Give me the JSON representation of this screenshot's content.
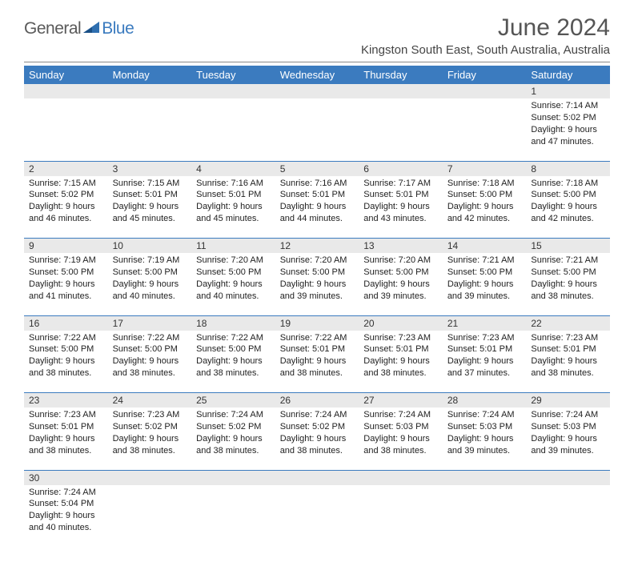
{
  "logo": {
    "text_general": "General",
    "text_blue": "Blue",
    "triangle_color": "#2f6fb0"
  },
  "title": "June 2024",
  "subtitle": "Kingston South East, South Australia, Australia",
  "header_bg": "#3b7bbf",
  "header_fg": "#ffffff",
  "daynum_bg": "#e9e9e9",
  "row_border_color": "#3b7bbf",
  "day_headers": [
    "Sunday",
    "Monday",
    "Tuesday",
    "Wednesday",
    "Thursday",
    "Friday",
    "Saturday"
  ],
  "weeks": [
    [
      null,
      null,
      null,
      null,
      null,
      null,
      {
        "n": "1",
        "sunrise": "7:14 AM",
        "sunset": "5:02 PM",
        "daylight": "9 hours and 47 minutes."
      }
    ],
    [
      {
        "n": "2",
        "sunrise": "7:15 AM",
        "sunset": "5:02 PM",
        "daylight": "9 hours and 46 minutes."
      },
      {
        "n": "3",
        "sunrise": "7:15 AM",
        "sunset": "5:01 PM",
        "daylight": "9 hours and 45 minutes."
      },
      {
        "n": "4",
        "sunrise": "7:16 AM",
        "sunset": "5:01 PM",
        "daylight": "9 hours and 45 minutes."
      },
      {
        "n": "5",
        "sunrise": "7:16 AM",
        "sunset": "5:01 PM",
        "daylight": "9 hours and 44 minutes."
      },
      {
        "n": "6",
        "sunrise": "7:17 AM",
        "sunset": "5:01 PM",
        "daylight": "9 hours and 43 minutes."
      },
      {
        "n": "7",
        "sunrise": "7:18 AM",
        "sunset": "5:00 PM",
        "daylight": "9 hours and 42 minutes."
      },
      {
        "n": "8",
        "sunrise": "7:18 AM",
        "sunset": "5:00 PM",
        "daylight": "9 hours and 42 minutes."
      }
    ],
    [
      {
        "n": "9",
        "sunrise": "7:19 AM",
        "sunset": "5:00 PM",
        "daylight": "9 hours and 41 minutes."
      },
      {
        "n": "10",
        "sunrise": "7:19 AM",
        "sunset": "5:00 PM",
        "daylight": "9 hours and 40 minutes."
      },
      {
        "n": "11",
        "sunrise": "7:20 AM",
        "sunset": "5:00 PM",
        "daylight": "9 hours and 40 minutes."
      },
      {
        "n": "12",
        "sunrise": "7:20 AM",
        "sunset": "5:00 PM",
        "daylight": "9 hours and 39 minutes."
      },
      {
        "n": "13",
        "sunrise": "7:20 AM",
        "sunset": "5:00 PM",
        "daylight": "9 hours and 39 minutes."
      },
      {
        "n": "14",
        "sunrise": "7:21 AM",
        "sunset": "5:00 PM",
        "daylight": "9 hours and 39 minutes."
      },
      {
        "n": "15",
        "sunrise": "7:21 AM",
        "sunset": "5:00 PM",
        "daylight": "9 hours and 38 minutes."
      }
    ],
    [
      {
        "n": "16",
        "sunrise": "7:22 AM",
        "sunset": "5:00 PM",
        "daylight": "9 hours and 38 minutes."
      },
      {
        "n": "17",
        "sunrise": "7:22 AM",
        "sunset": "5:00 PM",
        "daylight": "9 hours and 38 minutes."
      },
      {
        "n": "18",
        "sunrise": "7:22 AM",
        "sunset": "5:00 PM",
        "daylight": "9 hours and 38 minutes."
      },
      {
        "n": "19",
        "sunrise": "7:22 AM",
        "sunset": "5:01 PM",
        "daylight": "9 hours and 38 minutes."
      },
      {
        "n": "20",
        "sunrise": "7:23 AM",
        "sunset": "5:01 PM",
        "daylight": "9 hours and 38 minutes."
      },
      {
        "n": "21",
        "sunrise": "7:23 AM",
        "sunset": "5:01 PM",
        "daylight": "9 hours and 37 minutes."
      },
      {
        "n": "22",
        "sunrise": "7:23 AM",
        "sunset": "5:01 PM",
        "daylight": "9 hours and 38 minutes."
      }
    ],
    [
      {
        "n": "23",
        "sunrise": "7:23 AM",
        "sunset": "5:01 PM",
        "daylight": "9 hours and 38 minutes."
      },
      {
        "n": "24",
        "sunrise": "7:23 AM",
        "sunset": "5:02 PM",
        "daylight": "9 hours and 38 minutes."
      },
      {
        "n": "25",
        "sunrise": "7:24 AM",
        "sunset": "5:02 PM",
        "daylight": "9 hours and 38 minutes."
      },
      {
        "n": "26",
        "sunrise": "7:24 AM",
        "sunset": "5:02 PM",
        "daylight": "9 hours and 38 minutes."
      },
      {
        "n": "27",
        "sunrise": "7:24 AM",
        "sunset": "5:03 PM",
        "daylight": "9 hours and 38 minutes."
      },
      {
        "n": "28",
        "sunrise": "7:24 AM",
        "sunset": "5:03 PM",
        "daylight": "9 hours and 39 minutes."
      },
      {
        "n": "29",
        "sunrise": "7:24 AM",
        "sunset": "5:03 PM",
        "daylight": "9 hours and 39 minutes."
      }
    ],
    [
      {
        "n": "30",
        "sunrise": "7:24 AM",
        "sunset": "5:04 PM",
        "daylight": "9 hours and 40 minutes."
      },
      null,
      null,
      null,
      null,
      null,
      null
    ]
  ],
  "labels": {
    "sunrise": "Sunrise:",
    "sunset": "Sunset:",
    "daylight": "Daylight:"
  }
}
